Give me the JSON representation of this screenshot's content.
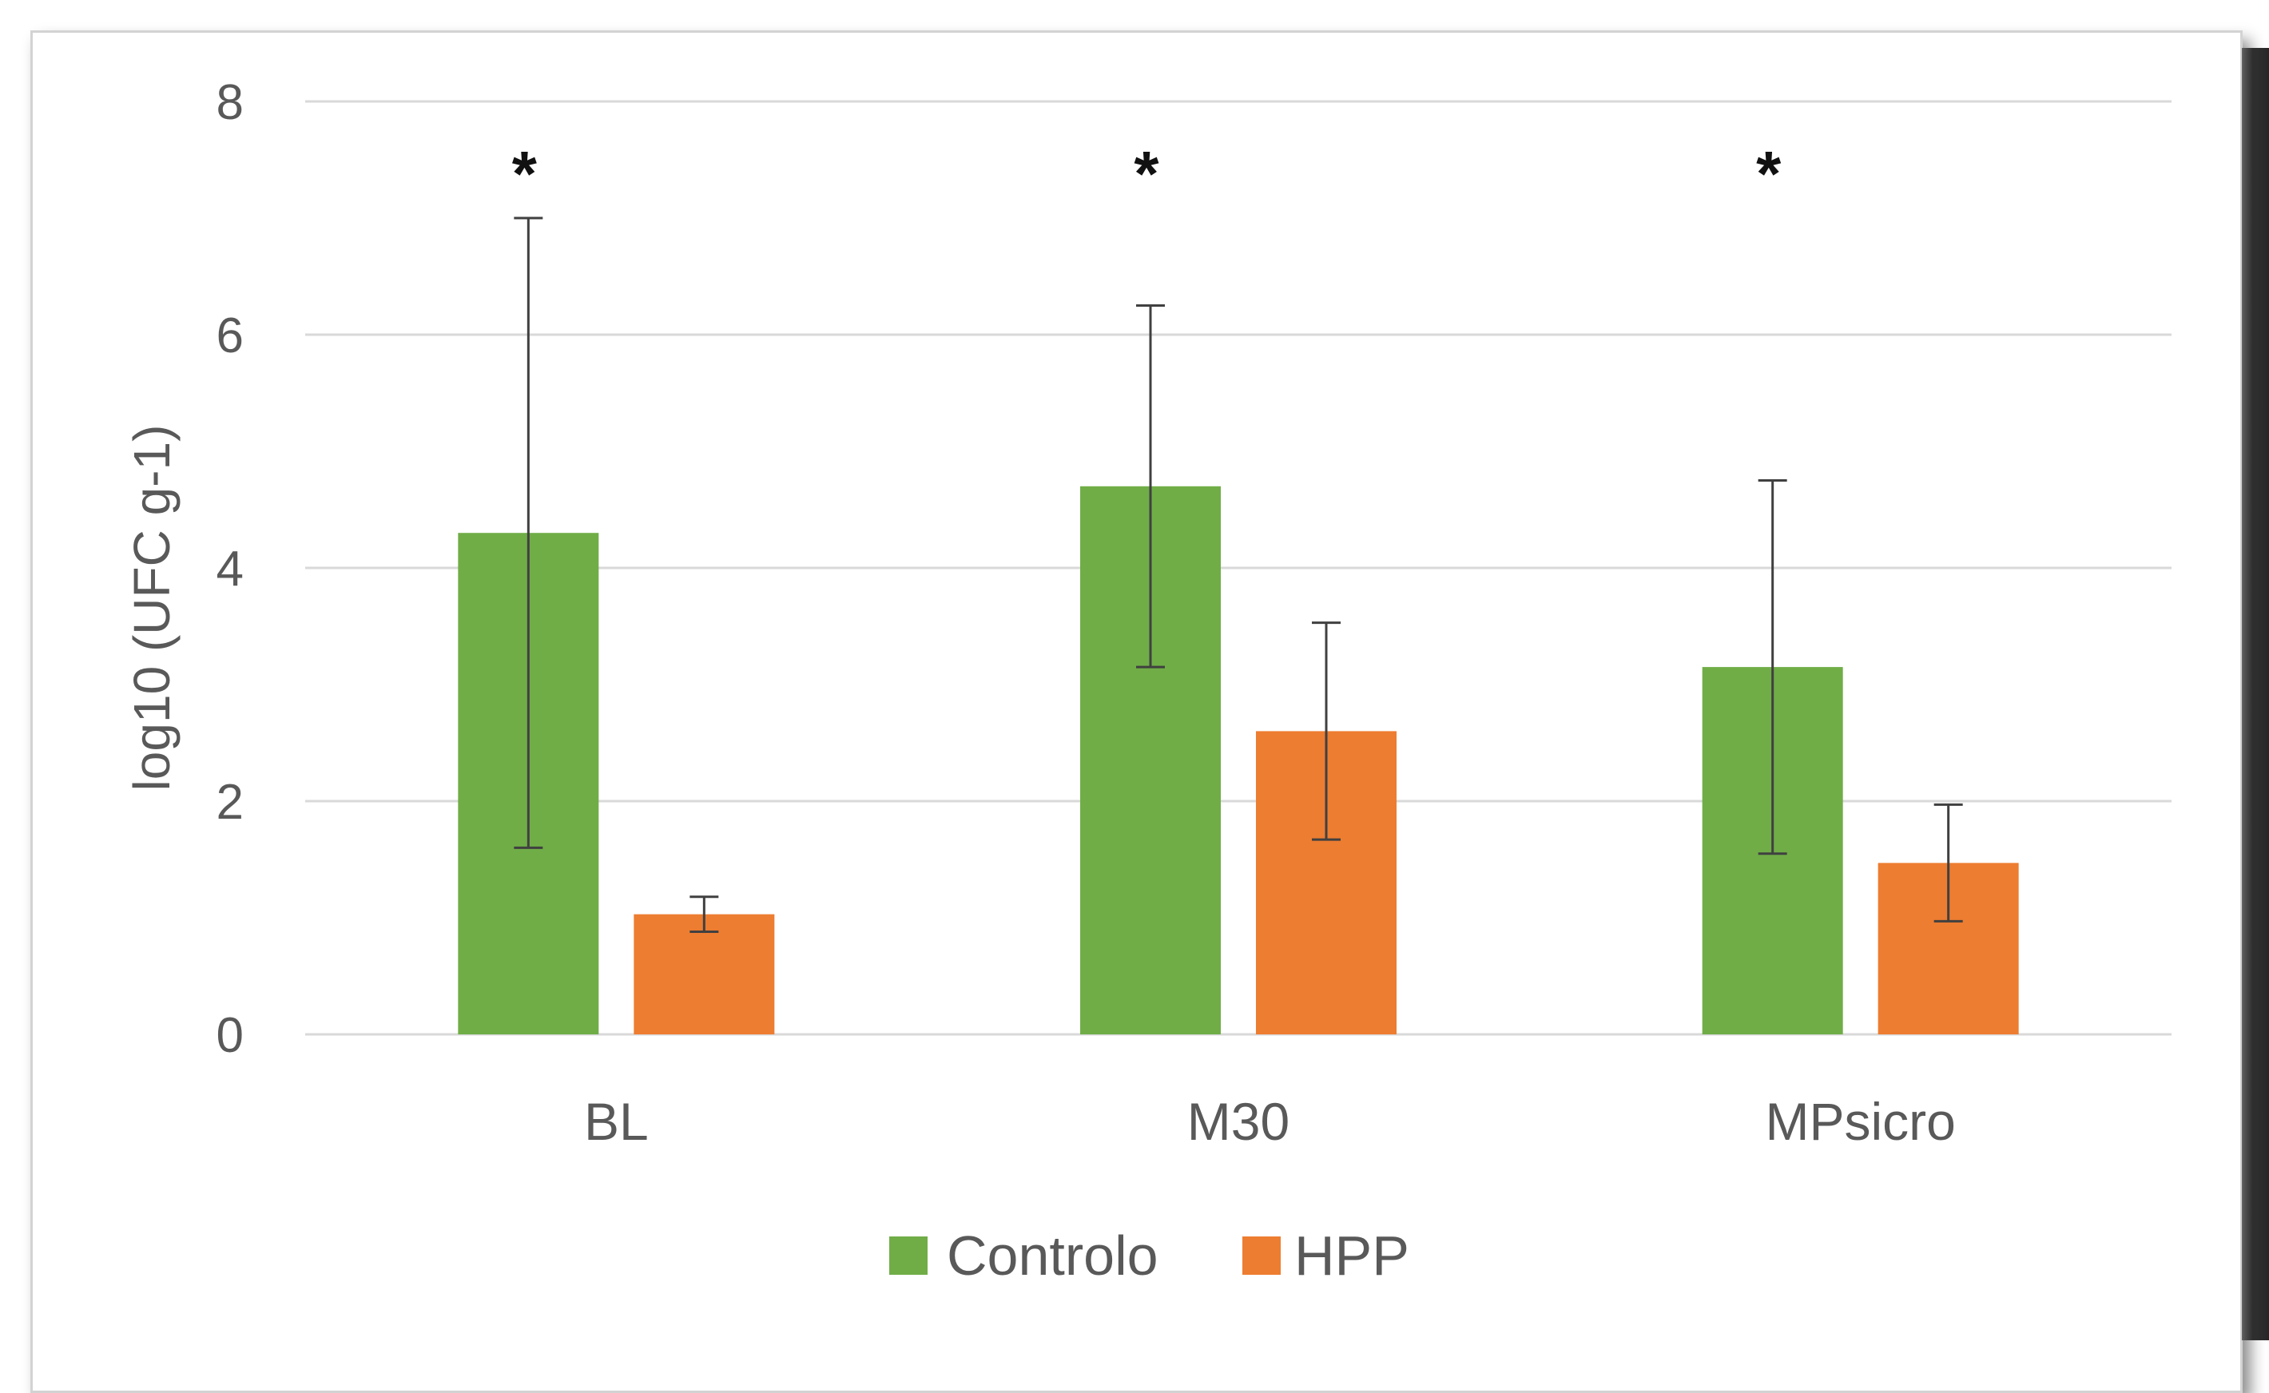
{
  "chart_data": {
    "type": "bar",
    "categories": [
      "BL",
      "M30",
      "MPsicro"
    ],
    "series": [
      {
        "name": "Controlo",
        "color": "#70ad47",
        "values": [
          4.3,
          4.7,
          3.15
        ],
        "error": [
          2.7,
          1.55,
          1.6
        ]
      },
      {
        "name": "HPP",
        "color": "#ed7d31",
        "values": [
          1.03,
          2.6,
          1.47
        ],
        "error": [
          0.15,
          0.93,
          0.5
        ]
      }
    ],
    "ylabel": "log10 (UFC g-1)",
    "ylim": [
      0,
      8
    ],
    "yticks": [
      0,
      2,
      4,
      6,
      8
    ],
    "significance": [
      "*",
      "*",
      "*"
    ],
    "grid": true,
    "legend": "bottom"
  }
}
